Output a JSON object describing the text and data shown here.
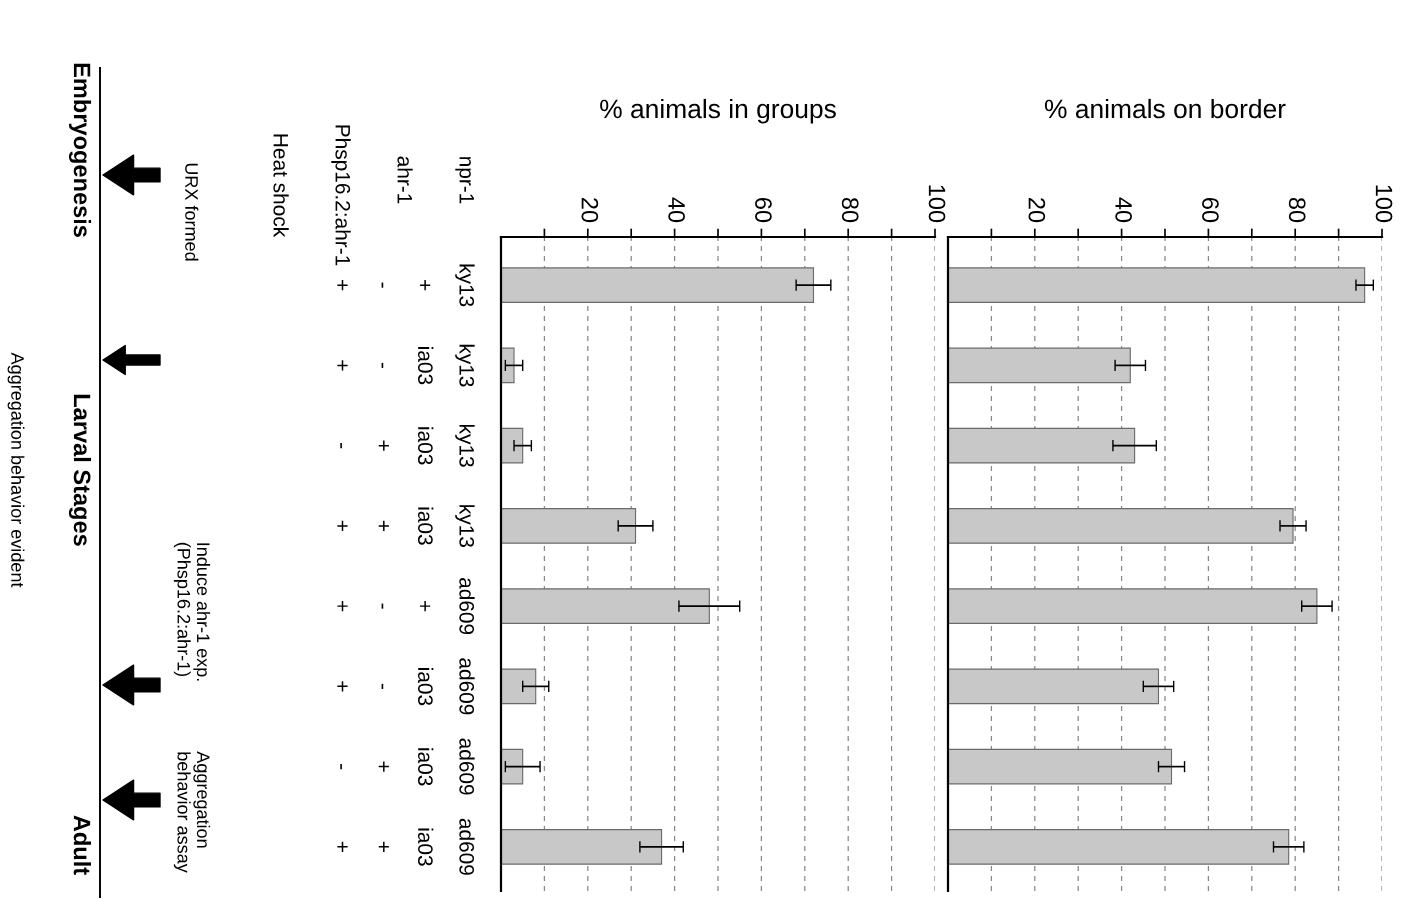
{
  "chart_data": [
    {
      "type": "bar",
      "orientation": "horizontal",
      "xlabel": "% animals in groups",
      "categories": [
        "ky13\n+\n-\n+",
        "ky13\nia03\n-\n+",
        "ky13\nia03\n+\n-",
        "ky13\nia03\n+\n+",
        "ad609\n+\n-\n+",
        "ad609\nia03\n-\n+",
        "ad609\nia03\n+\n-",
        "ad609\nia03\n+\n+"
      ],
      "series": [
        {
          "color": "#c8c8c8",
          "values": [
            72,
            3,
            5,
            31,
            48,
            8,
            5,
            37
          ],
          "errors": [
            4,
            2,
            2,
            4,
            7,
            3,
            4,
            5
          ]
        }
      ],
      "xlim": [
        0,
        100
      ],
      "xticks": [
        {
          "value": 10,
          "label": null
        },
        20,
        {
          "value": 30,
          "label": null
        },
        40,
        {
          "value": 50,
          "label": null
        },
        60,
        {
          "value": 70,
          "label": null
        },
        80,
        {
          "value": 90,
          "label": null
        },
        100
      ],
      "grid": "x",
      "annotations": [
        "npr-1",
        "ahr-1",
        "Phsp16.2:ahr-1",
        "Heat shock",
        "Embryogenesis",
        "Larval Stages",
        "Adult",
        "URX formed",
        "Aggregation behavior evident",
        "Induce ahr-1 exp.\n(Phsp16.2:ahr-1)",
        "Aggregation\nbehavior assay"
      ]
    },
    {
      "type": "bar",
      "orientation": "horizontal",
      "xlabel": "% animals on border",
      "tick_labels": "x",
      "series": [
        {
          "color": "#c8c8c8",
          "values": [
            96,
            42,
            43,
            79.5,
            85,
            48.5,
            51.5,
            78.5
          ],
          "errors": [
            2,
            3.5,
            5,
            3,
            3.5,
            3.5,
            3,
            3.5
          ]
        }
      ],
      "xlim": [
        0,
        100
      ],
      "xticks": [
        {
          "value": 10,
          "label": null
        },
        20,
        {
          "value": 30,
          "label": null
        },
        40,
        {
          "value": 50,
          "label": null
        },
        60,
        {
          "value": 70,
          "label": null
        },
        80,
        {
          "value": 90,
          "label": null
        },
        100
      ],
      "grid": "x"
    }
  ]
}
